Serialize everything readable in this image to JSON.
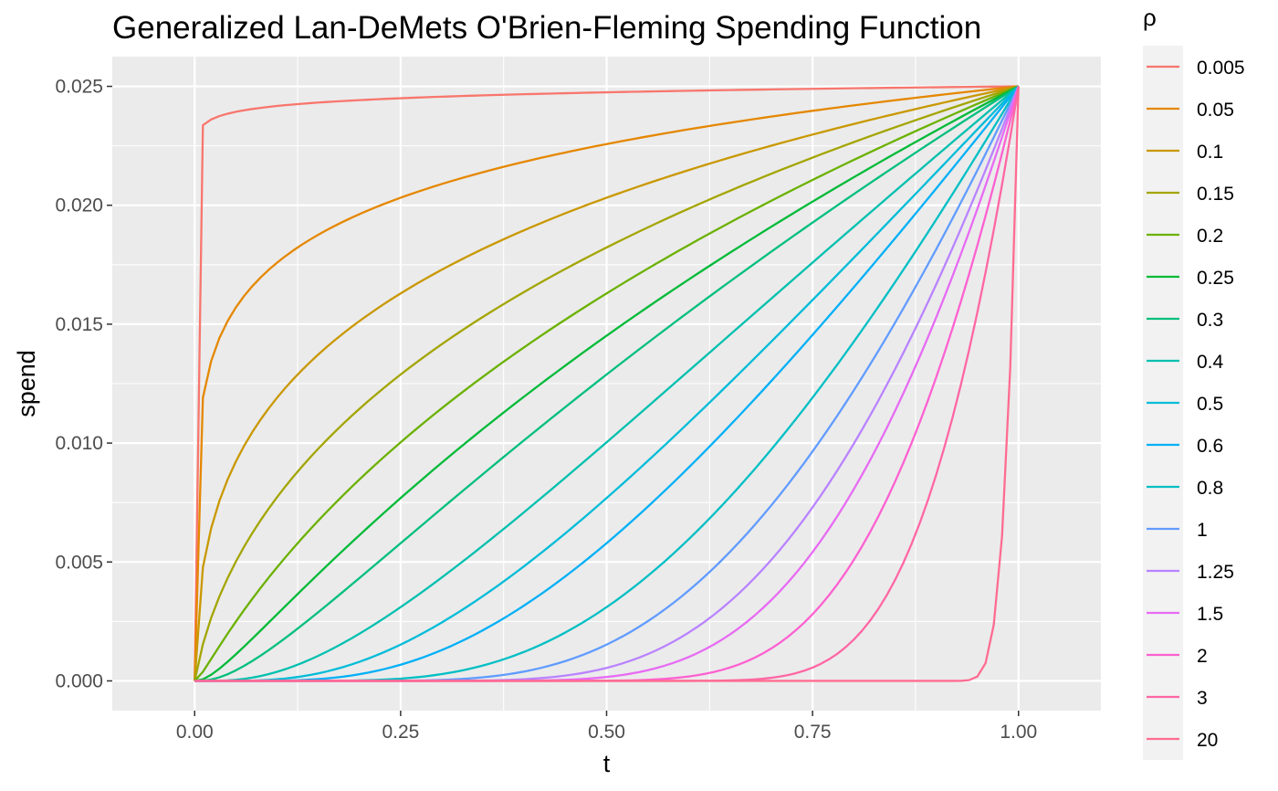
{
  "chart_data": {
    "type": "line",
    "title": "Generalized Lan-DeMets O'Brien-Fleming Spending Function",
    "xlabel": "t",
    "ylabel": "spend",
    "xlim": [
      -0.1,
      1.1
    ],
    "ylim": [
      -0.00125,
      0.02625
    ],
    "x_ticks": [
      0.0,
      0.25,
      0.5,
      0.75,
      1.0
    ],
    "x_tick_labels": [
      "0.00",
      "0.25",
      "0.50",
      "0.75",
      "1.00"
    ],
    "y_ticks": [
      0.0,
      0.005,
      0.01,
      0.015,
      0.02,
      0.025
    ],
    "y_tick_labels": [
      "0.000",
      "0.005",
      "0.010",
      "0.015",
      "0.020",
      "0.025"
    ],
    "alpha": 0.025,
    "function": "2*(1 - Phi(qnorm(1 - alpha/2) / t^(rho/2)))",
    "t_points": 101,
    "legend": {
      "title": "ρ",
      "position": "right"
    },
    "grid": true,
    "series": [
      {
        "name": "0.005",
        "rho": 0.005,
        "color": "#F8766D"
      },
      {
        "name": "0.05",
        "rho": 0.05,
        "color": "#E58700"
      },
      {
        "name": "0.1",
        "rho": 0.1,
        "color": "#C99800"
      },
      {
        "name": "0.15",
        "rho": 0.15,
        "color": "#A3A500"
      },
      {
        "name": "0.2",
        "rho": 0.2,
        "color": "#6BB100"
      },
      {
        "name": "0.25",
        "rho": 0.25,
        "color": "#00BA38"
      },
      {
        "name": "0.3",
        "rho": 0.3,
        "color": "#00BF7D"
      },
      {
        "name": "0.4",
        "rho": 0.4,
        "color": "#00C0AF"
      },
      {
        "name": "0.5",
        "rho": 0.5,
        "color": "#00BCD8"
      },
      {
        "name": "0.6",
        "rho": 0.6,
        "color": "#00B0F6"
      },
      {
        "name": "0.8",
        "rho": 0.8,
        "color": "#00BFC4"
      },
      {
        "name": "1",
        "rho": 1,
        "color": "#619CFF"
      },
      {
        "name": "1.25",
        "rho": 1.25,
        "color": "#B983FF"
      },
      {
        "name": "1.5",
        "rho": 1.5,
        "color": "#E76BF3"
      },
      {
        "name": "2",
        "rho": 2,
        "color": "#FD61D1"
      },
      {
        "name": "3",
        "rho": 3,
        "color": "#FF67A4"
      },
      {
        "name": "20",
        "rho": 20,
        "color": "#FF6C91"
      }
    ]
  }
}
